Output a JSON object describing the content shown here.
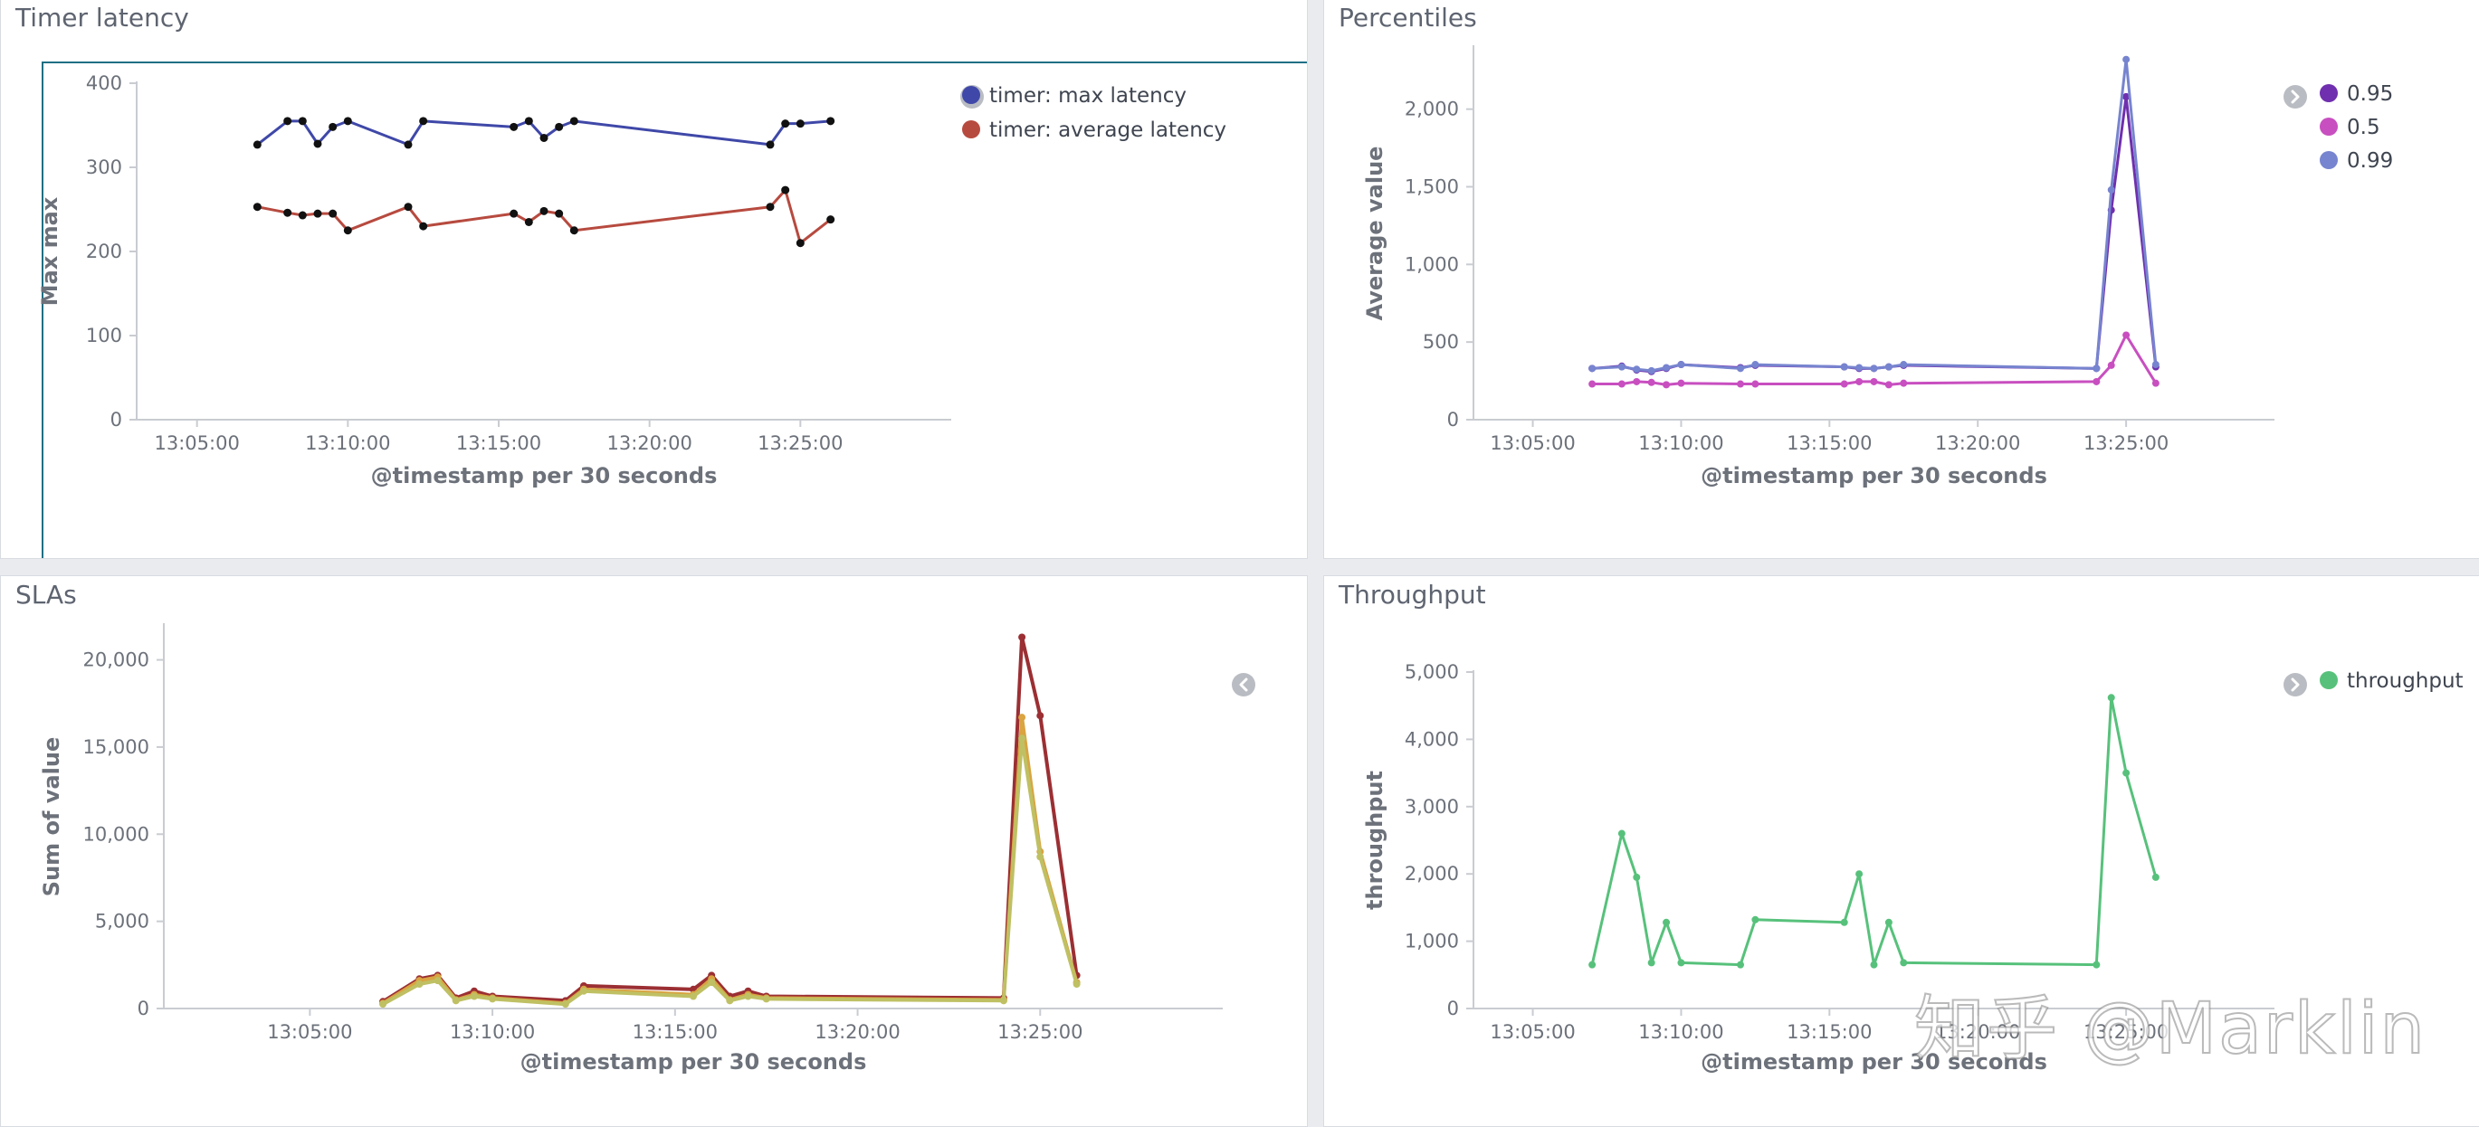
{
  "chart_data": [
    {
      "id": "timer",
      "type": "line",
      "title": "Timer latency",
      "xlabel": "@timestamp per 30 seconds",
      "ylabel": "Max max",
      "ylim": [
        0,
        400
      ],
      "yticks": [
        0,
        100,
        200,
        300,
        400
      ],
      "y_tick_labels": [
        "0",
        "100",
        "200",
        "300",
        "400"
      ],
      "xlim": [
        "13:03:00",
        "13:30:00"
      ],
      "xticks": [
        "13:05:00",
        "13:10:00",
        "13:15:00",
        "13:20:00",
        "13:25:00"
      ],
      "legend": "top-right",
      "markers": true,
      "selected": true,
      "series": [
        {
          "name": "timer: max latency",
          "color": "#3f48a8",
          "points": [
            [
              "13:07:00",
              327
            ],
            [
              "13:08:00",
              355
            ],
            [
              "13:08:30",
              355
            ],
            [
              "13:09:00",
              328
            ],
            [
              "13:09:30",
              348
            ],
            [
              "13:10:00",
              355
            ],
            [
              "13:12:00",
              327
            ],
            [
              "13:12:30",
              355
            ],
            [
              "13:15:30",
              348
            ],
            [
              "13:16:00",
              355
            ],
            [
              "13:16:30",
              335
            ],
            [
              "13:17:00",
              348
            ],
            [
              "13:17:30",
              355
            ],
            [
              "13:24:00",
              327
            ],
            [
              "13:24:30",
              352
            ],
            [
              "13:25:00",
              352
            ],
            [
              "13:26:00",
              355
            ]
          ]
        },
        {
          "name": "timer: average latency",
          "color": "#b74a3f",
          "points": [
            [
              "13:07:00",
              253
            ],
            [
              "13:08:00",
              246
            ],
            [
              "13:08:30",
              243
            ],
            [
              "13:09:00",
              245
            ],
            [
              "13:09:30",
              245
            ],
            [
              "13:10:00",
              225
            ],
            [
              "13:12:00",
              253
            ],
            [
              "13:12:30",
              230
            ],
            [
              "13:15:30",
              245
            ],
            [
              "13:16:00",
              235
            ],
            [
              "13:16:30",
              248
            ],
            [
              "13:17:00",
              245
            ],
            [
              "13:17:30",
              225
            ],
            [
              "13:24:00",
              253
            ],
            [
              "13:24:30",
              273
            ],
            [
              "13:25:00",
              210
            ],
            [
              "13:26:00",
              238
            ]
          ]
        }
      ]
    },
    {
      "id": "pct",
      "type": "line",
      "title": "Percentiles",
      "xlabel": "@timestamp per 30 seconds",
      "ylabel": "Average value",
      "ylim": [
        0,
        2400
      ],
      "yticks": [
        0,
        500,
        1000,
        1500,
        2000
      ],
      "y_tick_labels": [
        "0",
        "500",
        "1,000",
        "1,500",
        "2,000"
      ],
      "xlim": [
        "13:03:00",
        "13:30:00"
      ],
      "xticks": [
        "13:05:00",
        "13:10:00",
        "13:15:00",
        "13:20:00",
        "13:25:00"
      ],
      "legend": "top-right",
      "markers": true,
      "series": [
        {
          "name": "0.95",
          "color": "#6f2fae",
          "points": [
            [
              "13:07:00",
              330
            ],
            [
              "13:08:00",
              345
            ],
            [
              "13:08:30",
              320
            ],
            [
              "13:09:00",
              310
            ],
            [
              "13:09:30",
              330
            ],
            [
              "13:10:00",
              355
            ],
            [
              "13:12:00",
              335
            ],
            [
              "13:12:30",
              350
            ],
            [
              "13:15:30",
              340
            ],
            [
              "13:16:00",
              330
            ],
            [
              "13:16:30",
              330
            ],
            [
              "13:17:00",
              340
            ],
            [
              "13:17:30",
              350
            ],
            [
              "13:24:00",
              330
            ],
            [
              "13:24:30",
              1350
            ],
            [
              "13:25:00",
              2080
            ],
            [
              "13:26:00",
              340
            ]
          ]
        },
        {
          "name": "0.5",
          "color": "#c84fc0",
          "points": [
            [
              "13:07:00",
              230
            ],
            [
              "13:08:00",
              230
            ],
            [
              "13:08:30",
              245
            ],
            [
              "13:09:00",
              240
            ],
            [
              "13:09:30",
              225
            ],
            [
              "13:10:00",
              235
            ],
            [
              "13:12:00",
              230
            ],
            [
              "13:12:30",
              230
            ],
            [
              "13:15:30",
              230
            ],
            [
              "13:16:00",
              245
            ],
            [
              "13:16:30",
              245
            ],
            [
              "13:17:00",
              225
            ],
            [
              "13:17:30",
              235
            ],
            [
              "13:24:00",
              245
            ],
            [
              "13:24:30",
              350
            ],
            [
              "13:25:00",
              545
            ],
            [
              "13:26:00",
              235
            ]
          ]
        },
        {
          "name": "0.99",
          "color": "#7784cf",
          "points": [
            [
              "13:07:00",
              330
            ],
            [
              "13:08:00",
              340
            ],
            [
              "13:08:30",
              325
            ],
            [
              "13:09:00",
              315
            ],
            [
              "13:09:30",
              335
            ],
            [
              "13:10:00",
              355
            ],
            [
              "13:12:00",
              330
            ],
            [
              "13:12:30",
              355
            ],
            [
              "13:15:30",
              340
            ],
            [
              "13:16:00",
              335
            ],
            [
              "13:16:30",
              330
            ],
            [
              "13:17:00",
              340
            ],
            [
              "13:17:30",
              355
            ],
            [
              "13:24:00",
              330
            ],
            [
              "13:24:30",
              1480
            ],
            [
              "13:25:00",
              2320
            ],
            [
              "13:26:00",
              355
            ]
          ]
        }
      ]
    },
    {
      "id": "sla",
      "type": "line",
      "title": "SLAs",
      "xlabel": "@timestamp per 30 seconds",
      "ylabel": "Sum of value",
      "ylim": [
        0,
        22000
      ],
      "yticks": [
        0,
        5000,
        10000,
        15000,
        20000
      ],
      "y_tick_labels": [
        "0",
        "5,000",
        "10,000",
        "15,000",
        "20,000"
      ],
      "xlim": [
        "13:01:00",
        "13:30:00"
      ],
      "xticks": [
        "13:05:00",
        "13:10:00",
        "13:15:00",
        "13:20:00",
        "13:25:00"
      ],
      "legend": "collapsed",
      "markers": true,
      "series": [
        {
          "color": "#9b2f33",
          "points": [
            [
              "13:07:00",
              400
            ],
            [
              "13:08:00",
              1700
            ],
            [
              "13:08:30",
              1900
            ],
            [
              "13:09:00",
              600
            ],
            [
              "13:09:30",
              1000
            ],
            [
              "13:10:00",
              700
            ],
            [
              "13:12:00",
              450
            ],
            [
              "13:12:30",
              1300
            ],
            [
              "13:15:30",
              1100
            ],
            [
              "13:16:00",
              1900
            ],
            [
              "13:16:30",
              700
            ],
            [
              "13:17:00",
              1000
            ],
            [
              "13:17:30",
              700
            ],
            [
              "13:24:00",
              600
            ],
            [
              "13:24:30",
              21300
            ],
            [
              "13:25:00",
              16800
            ],
            [
              "13:26:00",
              1900
            ]
          ]
        },
        {
          "color": "#d9a441",
          "points": [
            [
              "13:07:00",
              300
            ],
            [
              "13:08:00",
              1600
            ],
            [
              "13:08:30",
              1800
            ],
            [
              "13:09:00",
              500
            ],
            [
              "13:09:30",
              800
            ],
            [
              "13:10:00",
              600
            ],
            [
              "13:12:00",
              300
            ],
            [
              "13:12:30",
              1100
            ],
            [
              "13:15:30",
              800
            ],
            [
              "13:16:00",
              1700
            ],
            [
              "13:16:30",
              500
            ],
            [
              "13:17:00",
              800
            ],
            [
              "13:17:30",
              600
            ],
            [
              "13:24:00",
              500
            ],
            [
              "13:24:30",
              16700
            ],
            [
              "13:25:00",
              9000
            ],
            [
              "13:26:00",
              1500
            ]
          ]
        },
        {
          "color": "#bfc063",
          "points": [
            [
              "13:07:00",
              250
            ],
            [
              "13:08:00",
              1400
            ],
            [
              "13:08:30",
              1600
            ],
            [
              "13:09:00",
              450
            ],
            [
              "13:09:30",
              700
            ],
            [
              "13:10:00",
              550
            ],
            [
              "13:12:00",
              250
            ],
            [
              "13:12:30",
              1000
            ],
            [
              "13:15:30",
              700
            ],
            [
              "13:16:00",
              1500
            ],
            [
              "13:16:30",
              450
            ],
            [
              "13:17:00",
              700
            ],
            [
              "13:17:30",
              550
            ],
            [
              "13:24:00",
              450
            ],
            [
              "13:24:30",
              15500
            ],
            [
              "13:25:00",
              8700
            ],
            [
              "13:26:00",
              1400
            ]
          ]
        }
      ]
    },
    {
      "id": "thr",
      "type": "line",
      "title": "Throughput",
      "xlabel": "@timestamp per 30 seconds",
      "ylabel": "throughput",
      "ylim": [
        0,
        5000
      ],
      "yticks": [
        0,
        1000,
        2000,
        3000,
        4000,
        5000
      ],
      "y_tick_labels": [
        "0",
        "1,000",
        "2,000",
        "3,000",
        "4,000",
        "5,000"
      ],
      "xlim": [
        "13:03:00",
        "13:30:00"
      ],
      "xticks": [
        "13:05:00",
        "13:10:00",
        "13:15:00",
        "13:20:00",
        "13:25:00"
      ],
      "legend": "top-right",
      "markers": true,
      "series": [
        {
          "name": "throughput",
          "color": "#57c17b",
          "points": [
            [
              "13:07:00",
              650
            ],
            [
              "13:08:00",
              2600
            ],
            [
              "13:08:30",
              1950
            ],
            [
              "13:09:00",
              680
            ],
            [
              "13:09:30",
              1280
            ],
            [
              "13:10:00",
              680
            ],
            [
              "13:12:00",
              650
            ],
            [
              "13:12:30",
              1320
            ],
            [
              "13:15:30",
              1280
            ],
            [
              "13:16:00",
              2000
            ],
            [
              "13:16:30",
              650
            ],
            [
              "13:17:00",
              1280
            ],
            [
              "13:17:30",
              680
            ],
            [
              "13:24:00",
              650
            ],
            [
              "13:24:30",
              4620
            ],
            [
              "13:25:00",
              3500
            ],
            [
              "13:26:00",
              1950
            ]
          ]
        }
      ]
    }
  ],
  "watermark": "知乎 @Marklin"
}
